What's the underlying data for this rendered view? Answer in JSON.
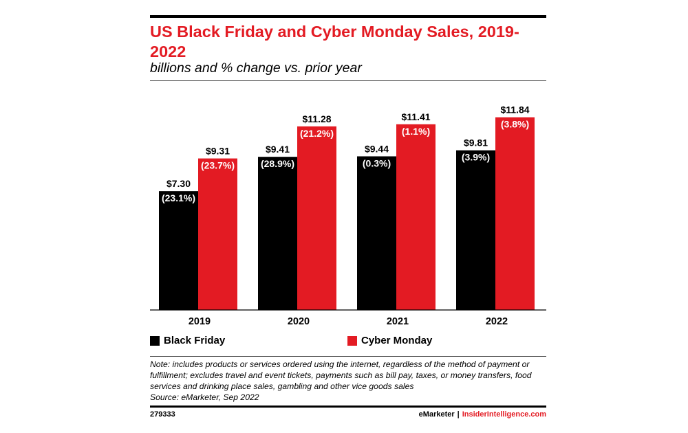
{
  "header": {
    "title": "US Black Friday and Cyber Monday Sales, 2019-2022",
    "subtitle": "billions and % change vs. prior year"
  },
  "chart_data": {
    "type": "bar",
    "title": "US Black Friday and Cyber Monday Sales, 2019-2022",
    "subtitle": "billions and % change vs. prior year",
    "categories": [
      "2019",
      "2020",
      "2021",
      "2022"
    ],
    "series": [
      {
        "name": "Black Friday",
        "color": "#000000",
        "values": [
          7.3,
          9.41,
          9.44,
          9.81
        ],
        "value_labels": [
          "$7.30",
          "$9.41",
          "$9.44",
          "$9.81"
        ],
        "change_labels": [
          "(23.1%)",
          "(28.9%)",
          "(0.3%)",
          "(3.9%)"
        ]
      },
      {
        "name": "Cyber Monday",
        "color": "#e31b23",
        "values": [
          9.31,
          11.28,
          11.41,
          11.84
        ],
        "value_labels": [
          "$9.31",
          "$11.28",
          "$11.41",
          "$11.84"
        ],
        "change_labels": [
          "(23.7%)",
          "(21.2%)",
          "(1.1%)",
          "(3.8%)"
        ]
      }
    ],
    "ylim": [
      0,
      12.5
    ],
    "grid": false,
    "legend_position": "bottom-left"
  },
  "note": "Note: includes products or services ordered using the internet, regardless of the method of payment or fulfillment; excludes travel and event tickets, payments such as bill pay, taxes, or money transfers, food services and drinking place sales, gambling and other vice goods sales",
  "source": "Source: eMarketer, Sep 2022",
  "footer": {
    "chart_id": "279333",
    "brand_left": "eMarketer",
    "separator": "|",
    "brand_right": "InsiderIntelligence.com"
  }
}
